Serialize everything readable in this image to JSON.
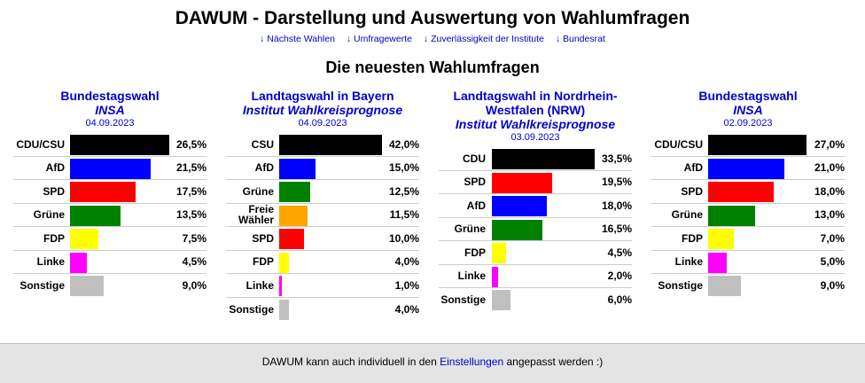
{
  "header": {
    "title": "DAWUM - Darstellung und Auswertung von Wahlumfragen",
    "nav": [
      {
        "label": "↓ Nächste Wahlen"
      },
      {
        "label": "↓ Umfragewerte"
      },
      {
        "label": "↓ Zuverlässigkeit der Institute"
      },
      {
        "label": "↓ Bundesrat"
      }
    ],
    "subtitle": "Die neuesten Wahlumfragen"
  },
  "polls": [
    {
      "parliament": "Bundestagswahl",
      "institute": "INSA",
      "date": "04.09.2023",
      "results": [
        {
          "party": "CDU/CSU",
          "value": 26.5,
          "label": "26,5%",
          "color": "#000000"
        },
        {
          "party": "AfD",
          "value": 21.5,
          "label": "21,5%",
          "color": "#0000ff"
        },
        {
          "party": "SPD",
          "value": 17.5,
          "label": "17,5%",
          "color": "#ff0000"
        },
        {
          "party": "Grüne",
          "value": 13.5,
          "label": "13,5%",
          "color": "#008000"
        },
        {
          "party": "FDP",
          "value": 7.5,
          "label": "7,5%",
          "color": "#ffff00"
        },
        {
          "party": "Linke",
          "value": 4.5,
          "label": "4,5%",
          "color": "#ff00ff"
        },
        {
          "party": "Sonstige",
          "value": 9.0,
          "label": "9,0%",
          "color": "#c0c0c0"
        }
      ]
    },
    {
      "parliament": "Landtagswahl in Bayern",
      "institute": "Institut Wahlkreisprognose",
      "date": "04.09.2023",
      "results": [
        {
          "party": "CSU",
          "value": 42.0,
          "label": "42,0%",
          "color": "#000000"
        },
        {
          "party": "AfD",
          "value": 15.0,
          "label": "15,0%",
          "color": "#0000ff"
        },
        {
          "party": "Grüne",
          "value": 12.5,
          "label": "12,5%",
          "color": "#008000"
        },
        {
          "party": "Freie Wähler",
          "value": 11.5,
          "label": "11,5%",
          "color": "#ffa500"
        },
        {
          "party": "SPD",
          "value": 10.0,
          "label": "10,0%",
          "color": "#ff0000"
        },
        {
          "party": "FDP",
          "value": 4.0,
          "label": "4,0%",
          "color": "#ffff00"
        },
        {
          "party": "Linke",
          "value": 1.0,
          "label": "1,0%",
          "color": "#ff00ff"
        },
        {
          "party": "Sonstige",
          "value": 4.0,
          "label": "4,0%",
          "color": "#c0c0c0"
        }
      ]
    },
    {
      "parliament": "Landtagswahl in Nordrhein-Westfalen (NRW)",
      "institute": "Institut Wahlkreisprognose",
      "date": "03.09.2023",
      "results": [
        {
          "party": "CDU",
          "value": 33.5,
          "label": "33,5%",
          "color": "#000000"
        },
        {
          "party": "SPD",
          "value": 19.5,
          "label": "19,5%",
          "color": "#ff0000"
        },
        {
          "party": "AfD",
          "value": 18.0,
          "label": "18,0%",
          "color": "#0000ff"
        },
        {
          "party": "Grüne",
          "value": 16.5,
          "label": "16,5%",
          "color": "#008000"
        },
        {
          "party": "FDP",
          "value": 4.5,
          "label": "4,5%",
          "color": "#ffff00"
        },
        {
          "party": "Linke",
          "value": 2.0,
          "label": "2,0%",
          "color": "#ff00ff"
        },
        {
          "party": "Sonstige",
          "value": 6.0,
          "label": "6,0%",
          "color": "#c0c0c0"
        }
      ]
    },
    {
      "parliament": "Bundestagswahl",
      "institute": "INSA",
      "date": "02.09.2023",
      "results": [
        {
          "party": "CDU/CSU",
          "value": 27.0,
          "label": "27,0%",
          "color": "#000000"
        },
        {
          "party": "AfD",
          "value": 21.0,
          "label": "21,0%",
          "color": "#0000ff"
        },
        {
          "party": "SPD",
          "value": 18.0,
          "label": "18,0%",
          "color": "#ff0000"
        },
        {
          "party": "Grüne",
          "value": 13.0,
          "label": "13,0%",
          "color": "#008000"
        },
        {
          "party": "FDP",
          "value": 7.0,
          "label": "7,0%",
          "color": "#ffff00"
        },
        {
          "party": "Linke",
          "value": 5.0,
          "label": "5,0%",
          "color": "#ff00ff"
        },
        {
          "party": "Sonstige",
          "value": 9.0,
          "label": "9,0%",
          "color": "#c0c0c0"
        }
      ]
    }
  ],
  "footer": {
    "text_before": "DAWUM kann auch individuell in den ",
    "link": "Einstellungen",
    "text_after": " angepasst werden :)"
  }
}
